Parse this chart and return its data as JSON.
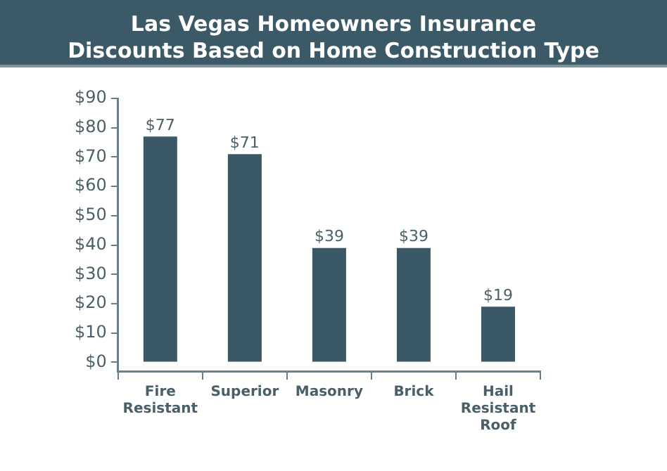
{
  "chart_data": {
    "type": "bar",
    "title": "Las Vegas Homeowners Insurance\nDiscounts Based on Home Construction Type",
    "categories": [
      "Fire Resistant",
      "Superior",
      "Masonry",
      "Brick",
      "Hail Resistant Roof"
    ],
    "values": [
      77,
      71,
      39,
      39,
      19
    ],
    "color": "#3b5866",
    "value_labels": [
      "$77",
      "$71",
      "$39",
      "$39",
      "$19"
    ],
    "ylim": [
      -3,
      90
    ],
    "yticks": [
      {
        "value": 0,
        "label": "$0"
      },
      {
        "value": 10,
        "label": "$10"
      },
      {
        "value": 20,
        "label": "$20"
      },
      {
        "value": 30,
        "label": "$30"
      },
      {
        "value": 40,
        "label": "$40"
      },
      {
        "value": 50,
        "label": "$50"
      },
      {
        "value": 60,
        "label": "$60"
      },
      {
        "value": 70,
        "label": "$70"
      },
      {
        "value": 80,
        "label": "$80"
      },
      {
        "value": 90,
        "label": "$90"
      }
    ],
    "grid": false,
    "legend": false
  }
}
